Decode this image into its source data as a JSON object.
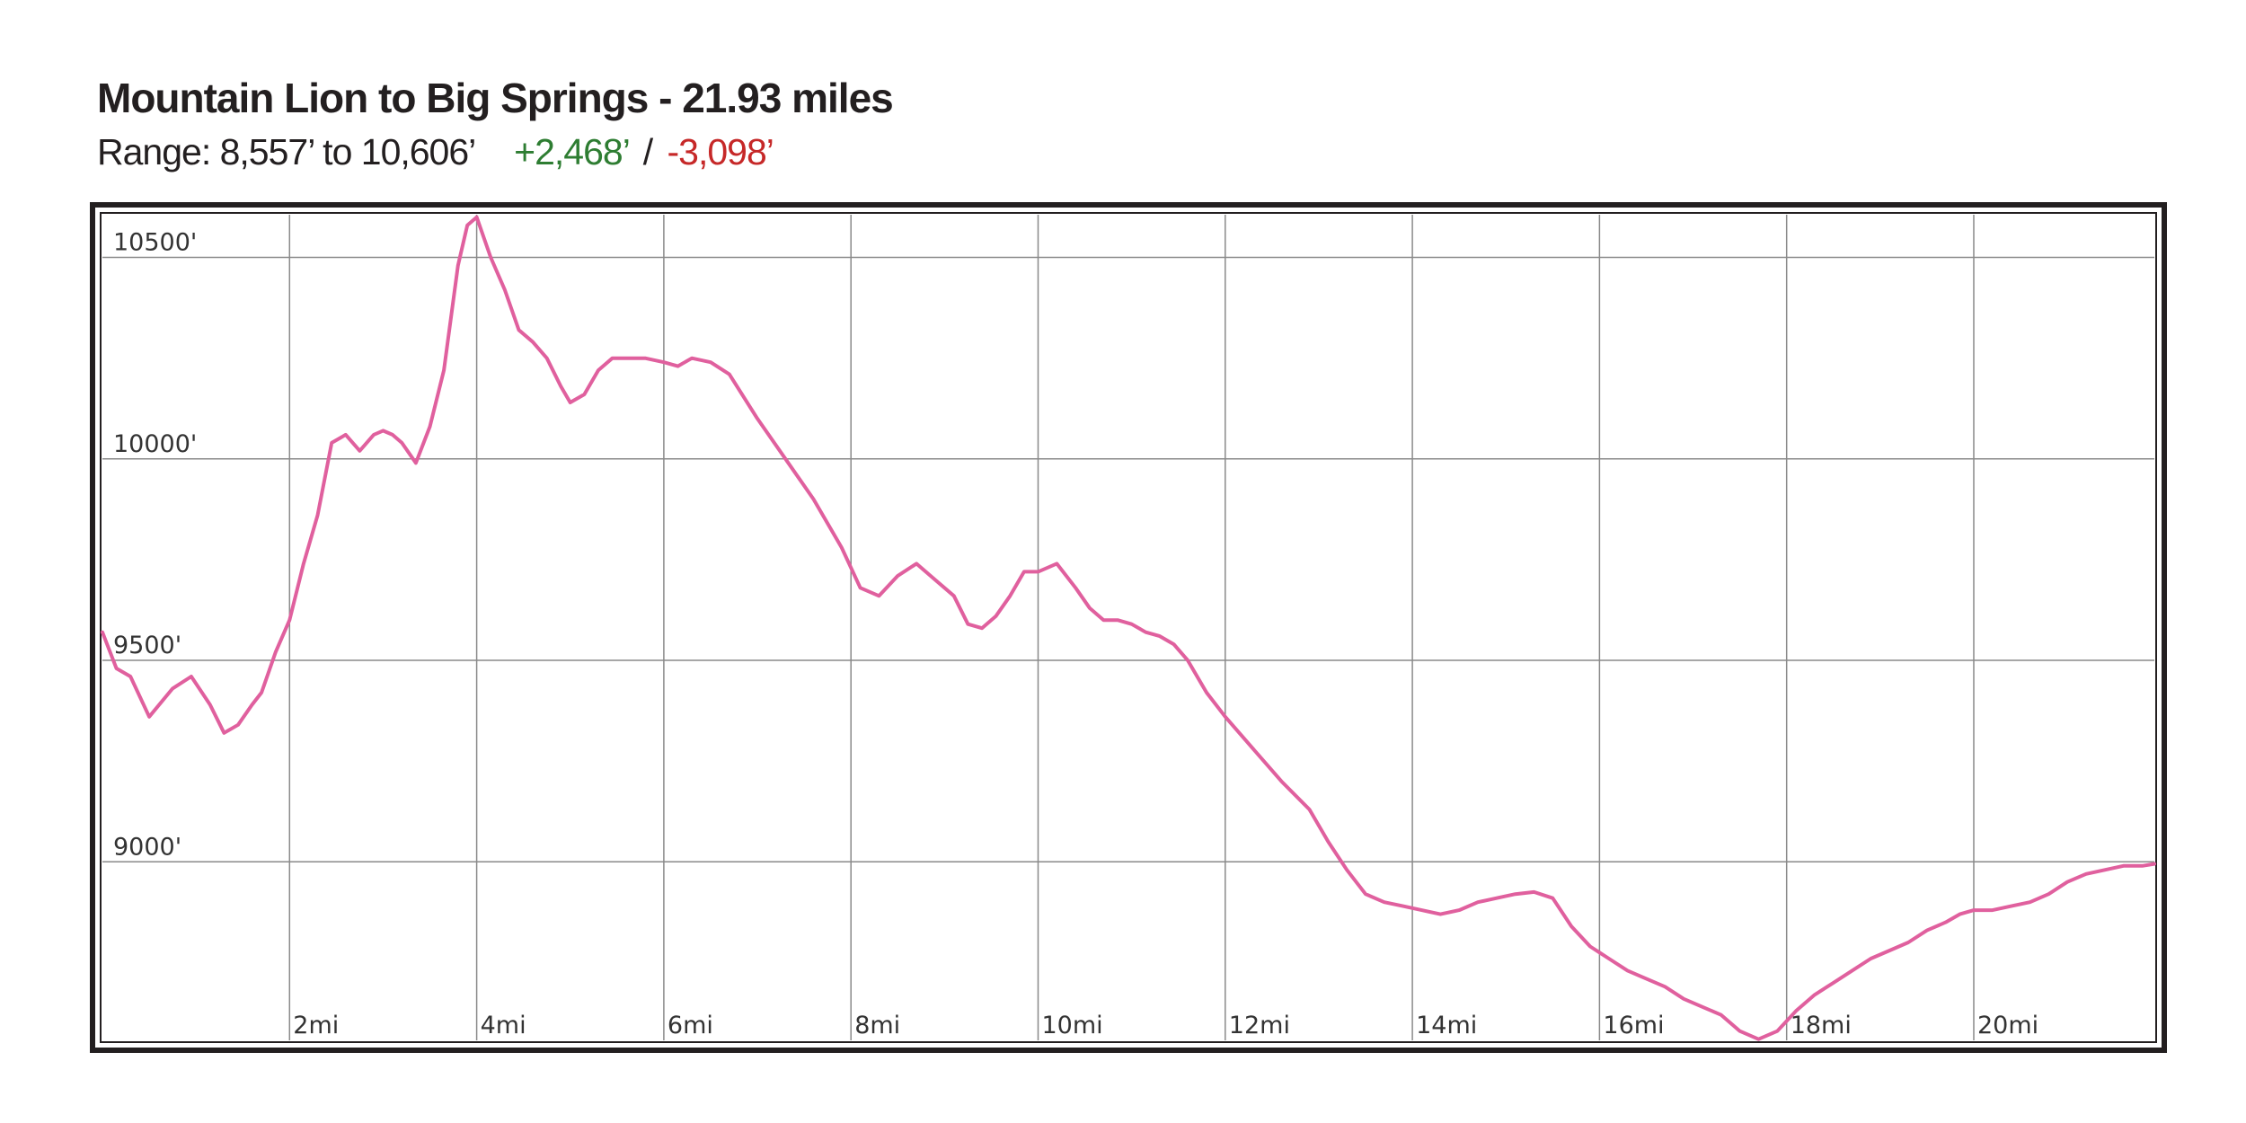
{
  "header": {
    "title": "Mountain Lion to Big Springs - 21.93 miles",
    "range_text": "Range: 8,557’ to 10,606’",
    "gain_text": "+2,468’",
    "separator": "/",
    "loss_text": "-3,098’",
    "gain_color": "#2e7d32",
    "loss_color": "#c62828"
  },
  "chart_data": {
    "type": "line",
    "title": "Mountain Lion to Big Springs - 21.93 miles",
    "xlabel": "",
    "ylabel": "",
    "xlim": [
      0,
      21.93
    ],
    "ylim": [
      8557,
      10606
    ],
    "grid": true,
    "line_color": "#e0609e",
    "x_ticks": [
      2,
      4,
      6,
      8,
      10,
      12,
      14,
      16,
      18,
      20
    ],
    "x_tick_labels": [
      "2mi",
      "4mi",
      "6mi",
      "8mi",
      "10mi",
      "12mi",
      "14mi",
      "16mi",
      "18mi",
      "20mi"
    ],
    "y_ticks": [
      9000,
      9500,
      10000,
      10500
    ],
    "y_tick_labels": [
      "9000'",
      "9500'",
      "10000'",
      "10500'"
    ],
    "series": [
      {
        "x": [
          0.0,
          0.15,
          0.3,
          0.5,
          0.75,
          0.95,
          1.15,
          1.3,
          1.45,
          1.6,
          1.7,
          1.85,
          2.0,
          2.15,
          2.3,
          2.45,
          2.6,
          2.75,
          2.9,
          3.0,
          3.1,
          3.2,
          3.35,
          3.5,
          3.65,
          3.8,
          3.9,
          4.0,
          4.15,
          4.3,
          4.45,
          4.6,
          4.75,
          4.9,
          5.0,
          5.15,
          5.3,
          5.45,
          5.6,
          5.8,
          6.0,
          6.15,
          6.3,
          6.5,
          6.7,
          7.0,
          7.3,
          7.6,
          7.9,
          8.1,
          8.3,
          8.5,
          8.7,
          8.9,
          9.1,
          9.25,
          9.4,
          9.55,
          9.7,
          9.85,
          10.0,
          10.2,
          10.4,
          10.55,
          10.7,
          10.85,
          11.0,
          11.15,
          11.3,
          11.45,
          11.6,
          11.8,
          12.0,
          12.3,
          12.6,
          12.9,
          13.1,
          13.3,
          13.5,
          13.7,
          13.9,
          14.1,
          14.3,
          14.5,
          14.7,
          14.9,
          15.1,
          15.3,
          15.5,
          15.7,
          15.9,
          16.1,
          16.3,
          16.5,
          16.7,
          16.9,
          17.1,
          17.3,
          17.5,
          17.7,
          17.9,
          18.1,
          18.3,
          18.5,
          18.7,
          18.9,
          19.1,
          19.3,
          19.5,
          19.7,
          19.85,
          20.0,
          20.2,
          20.4,
          20.6,
          20.8,
          21.0,
          21.2,
          21.4,
          21.6,
          21.8,
          21.93
        ],
        "y": [
          9570,
          9480,
          9460,
          9360,
          9430,
          9460,
          9390,
          9320,
          9340,
          9390,
          9420,
          9520,
          9600,
          9740,
          9860,
          10040,
          10060,
          10020,
          10060,
          10070,
          10060,
          10040,
          9990,
          10080,
          10220,
          10480,
          10580,
          10600,
          10500,
          10420,
          10320,
          10290,
          10250,
          10180,
          10140,
          10160,
          10220,
          10250,
          10250,
          10250,
          10240,
          10230,
          10250,
          10240,
          10210,
          10100,
          10000,
          9900,
          9780,
          9680,
          9660,
          9710,
          9740,
          9700,
          9660,
          9590,
          9580,
          9610,
          9660,
          9720,
          9720,
          9740,
          9680,
          9630,
          9600,
          9600,
          9590,
          9570,
          9560,
          9540,
          9500,
          9420,
          9360,
          9280,
          9200,
          9130,
          9050,
          8980,
          8920,
          8900,
          8890,
          8880,
          8870,
          8880,
          8900,
          8910,
          8920,
          8925,
          8910,
          8840,
          8790,
          8760,
          8730,
          8710,
          8690,
          8660,
          8640,
          8620,
          8580,
          8560,
          8580,
          8630,
          8670,
          8700,
          8730,
          8760,
          8780,
          8800,
          8830,
          8850,
          8870,
          8880,
          8880,
          8890,
          8900,
          8920,
          8950,
          8970,
          8980,
          8990,
          8990,
          8995
        ]
      }
    ]
  }
}
